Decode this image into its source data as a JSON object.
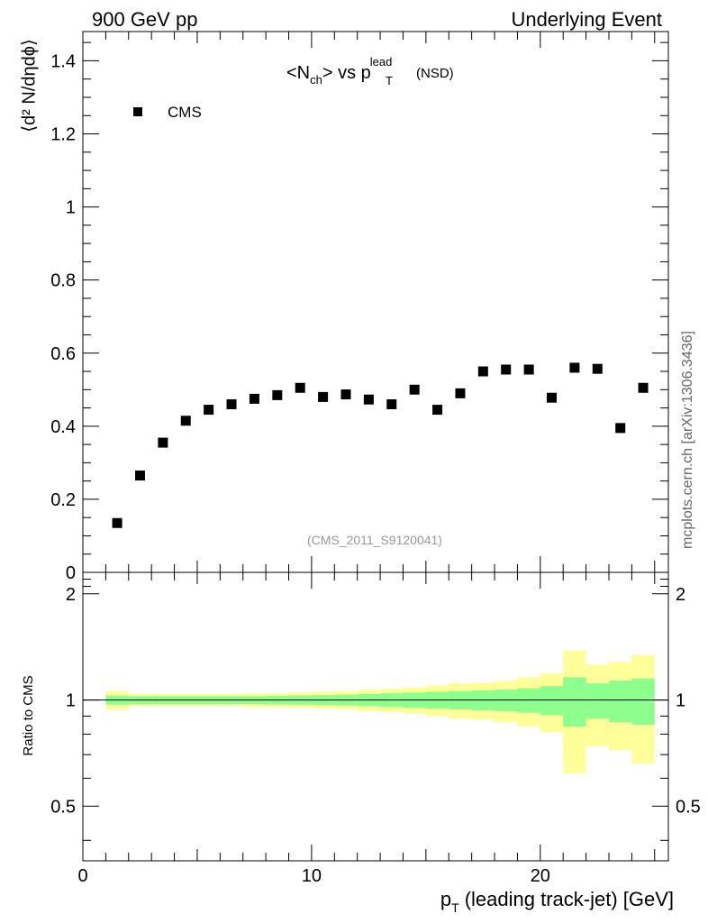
{
  "header": {
    "left": "900 GeV pp",
    "right": "Underlying Event"
  },
  "side_label": "mcplots.cern.ch [arXiv:1306.3436]",
  "chart_data": [
    {
      "type": "scatter",
      "title": {
        "main": "<N",
        "sub_ch": "ch",
        "mid": "> vs p",
        "sup_lead": "lead",
        "sub_t": "T",
        "tail": "(NSD)"
      },
      "ylabel": "⟨d² N/dηdϕ⟩",
      "ylim": [
        0,
        1.48
      ],
      "yticks": [
        0,
        0.2,
        0.4,
        0.6,
        0.8,
        1,
        1.2,
        1.4
      ],
      "ytick_labels": [
        "0",
        "0.2",
        "0.4",
        "0.6",
        "0.8",
        "1",
        "1.2",
        "1.4"
      ],
      "xlim": [
        0,
        25.6
      ],
      "legend": {
        "label": "CMS",
        "position": "top-left"
      },
      "annotation": "(CMS_2011_S9120041)",
      "series": [
        {
          "name": "CMS",
          "x": [
            1.5,
            2.5,
            3.5,
            4.5,
            5.5,
            6.5,
            7.5,
            8.5,
            9.5,
            10.5,
            11.5,
            12.5,
            13.5,
            14.5,
            15.5,
            16.5,
            17.5,
            18.5,
            19.5,
            20.5,
            21.5,
            22.5,
            23.5,
            24.5
          ],
          "values": [
            0.135,
            0.265,
            0.355,
            0.415,
            0.445,
            0.46,
            0.475,
            0.485,
            0.505,
            0.48,
            0.487,
            0.473,
            0.46,
            0.5,
            0.445,
            0.49,
            0.55,
            0.555,
            0.555,
            0.478,
            0.56,
            0.557,
            0.395,
            0.505
          ]
        }
      ]
    },
    {
      "type": "area",
      "ylabel": "Ratio to CMS",
      "ylim": [
        0.35,
        2.3
      ],
      "yticks": [
        0.5,
        1,
        2
      ],
      "ytick_labels": [
        "0.5",
        "1",
        "2"
      ],
      "xlim": [
        0,
        25.6
      ],
      "xticks": [
        0,
        10,
        20
      ],
      "xtick_labels": [
        "0",
        "10",
        "20"
      ],
      "xlabel": {
        "main": "p",
        "sub": "T",
        "rest": "(leading track-jet) [GeV]"
      },
      "reference_line": 1,
      "bins": [
        1,
        2,
        3,
        4,
        5,
        6,
        7,
        8,
        9,
        10,
        11,
        12,
        13,
        14,
        15,
        16,
        17,
        18,
        19,
        20,
        21,
        22,
        23,
        24,
        25
      ],
      "stat_band": {
        "color": "#8cff8c",
        "lo": [
          0.97,
          0.975,
          0.975,
          0.975,
          0.975,
          0.975,
          0.975,
          0.972,
          0.97,
          0.968,
          0.965,
          0.96,
          0.955,
          0.95,
          0.945,
          0.94,
          0.935,
          0.93,
          0.92,
          0.905,
          0.84,
          0.885,
          0.865,
          0.85
        ],
        "hi": [
          1.03,
          1.025,
          1.025,
          1.025,
          1.025,
          1.025,
          1.025,
          1.028,
          1.03,
          1.032,
          1.035,
          1.04,
          1.045,
          1.05,
          1.055,
          1.06,
          1.065,
          1.07,
          1.08,
          1.095,
          1.16,
          1.115,
          1.135,
          1.15
        ]
      },
      "syst_band": {
        "color": "#ffff99",
        "lo": [
          0.94,
          0.96,
          0.96,
          0.96,
          0.96,
          0.96,
          0.955,
          0.955,
          0.95,
          0.945,
          0.94,
          0.93,
          0.925,
          0.915,
          0.9,
          0.885,
          0.88,
          0.865,
          0.84,
          0.81,
          0.62,
          0.74,
          0.72,
          0.66
        ],
        "hi": [
          1.06,
          1.04,
          1.04,
          1.04,
          1.04,
          1.04,
          1.045,
          1.045,
          1.05,
          1.055,
          1.06,
          1.07,
          1.075,
          1.085,
          1.1,
          1.115,
          1.12,
          1.135,
          1.16,
          1.19,
          1.38,
          1.26,
          1.28,
          1.34
        ]
      }
    }
  ]
}
